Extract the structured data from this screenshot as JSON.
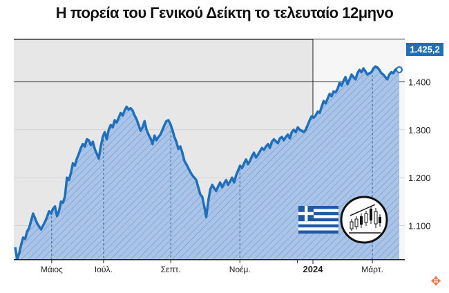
{
  "title": "Η πορεία του Γενικού Δείκτη το τελευταίο 12μηνο",
  "chart_data": {
    "type": "area",
    "title": "Η πορεία του Γενικού Δείκτη το τελευταίο 12μηνο",
    "xlabel": "",
    "ylabel": "",
    "ylim": [
      1030,
      1490
    ],
    "y_ticks": [
      "1.100",
      "1.200",
      "1.300",
      "1.400"
    ],
    "y_tick_values": [
      1100,
      1200,
      1300,
      1400
    ],
    "x_ticks": [
      "Μάιος",
      "Ιούλ.",
      "Σεπτ.",
      "Νοέμ.",
      "2024",
      "Μάρτ."
    ],
    "x_tick_positions": [
      0.095,
      0.23,
      0.405,
      0.585,
      0.735,
      0.93
    ],
    "last_value_label": "1.425,2",
    "grid": false,
    "colors": {
      "line": "#1f6fba",
      "area": "#a9c4e6",
      "hatch": "#6f95cf",
      "label_bg": "#1f6fba",
      "background_panel": "#e6e6e6"
    },
    "values": [
      1055,
      1030,
      1042,
      1060,
      1075,
      1072,
      1088,
      1095,
      1110,
      1125,
      1115,
      1105,
      1098,
      1092,
      1100,
      1108,
      1118,
      1130,
      1125,
      1135,
      1140,
      1120,
      1130,
      1150,
      1148,
      1160,
      1200,
      1195,
      1210,
      1230,
      1225,
      1240,
      1250,
      1262,
      1270,
      1265,
      1280,
      1278,
      1268,
      1275,
      1260,
      1250,
      1240,
      1265,
      1285,
      1295,
      1280,
      1300,
      1310,
      1305,
      1320,
      1315,
      1325,
      1335,
      1330,
      1340,
      1348,
      1342,
      1345,
      1340,
      1330,
      1322,
      1310,
      1298,
      1305,
      1318,
      1300,
      1290,
      1282,
      1270,
      1288,
      1278,
      1285,
      1290,
      1300,
      1310,
      1318,
      1320,
      1312,
      1300,
      1285,
      1275,
      1260,
      1265,
      1252,
      1235,
      1228,
      1220,
      1212,
      1205,
      1200,
      1195,
      1180,
      1165,
      1160,
      1140,
      1118,
      1150,
      1175,
      1185,
      1178,
      1172,
      1182,
      1190,
      1180,
      1188,
      1195,
      1185,
      1192,
      1200,
      1190,
      1205,
      1215,
      1225,
      1220,
      1230,
      1238,
      1228,
      1235,
      1245,
      1252,
      1242,
      1248,
      1255,
      1262,
      1258,
      1265,
      1270,
      1262,
      1275,
      1280,
      1276,
      1272,
      1282,
      1285,
      1278,
      1285,
      1290,
      1282,
      1295,
      1300,
      1295,
      1305,
      1300,
      1298,
      1295,
      1300,
      1310,
      1320,
      1328,
      1325,
      1330,
      1338,
      1335,
      1348,
      1360,
      1355,
      1365,
      1375,
      1370,
      1380,
      1378,
      1385,
      1398,
      1392,
      1402,
      1410,
      1395,
      1405,
      1415,
      1410,
      1405,
      1418,
      1425,
      1420,
      1428,
      1422,
      1415,
      1418,
      1420,
      1428,
      1432,
      1430,
      1425,
      1418,
      1415,
      1410,
      1405,
      1415,
      1420,
      1418,
      1425,
      1428,
      1425.2
    ]
  },
  "badges": {
    "flag_icon": "greece-flag-icon",
    "chart_icon": "candlestick-chart-icon"
  },
  "corner_icon": "logo-icon"
}
